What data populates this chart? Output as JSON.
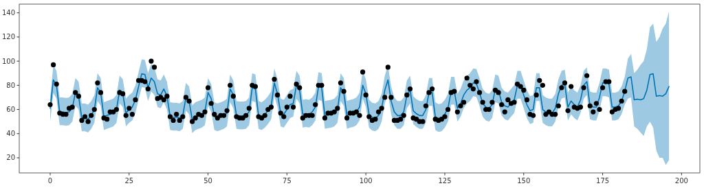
{
  "chart_data": {
    "type": "line",
    "xlim": [
      -9.8,
      205.8
    ],
    "ylim": [
      7.5,
      147.2
    ],
    "xticks": [
      0,
      25,
      50,
      75,
      100,
      125,
      150,
      175,
      200
    ],
    "yticks": [
      20,
      40,
      60,
      80,
      100,
      120,
      140
    ],
    "grid": false,
    "series": [
      {
        "color": "#0072b2",
        "x": [
          0,
          1,
          2,
          3,
          4,
          5,
          6,
          7,
          8,
          9,
          10,
          11,
          12,
          13,
          14,
          15,
          16,
          17,
          18,
          19,
          20,
          21,
          22,
          23,
          24,
          25,
          26,
          27,
          28,
          29,
          30,
          31,
          32,
          33,
          34,
          35,
          36,
          37,
          38,
          39,
          40,
          41,
          42,
          43,
          44,
          45,
          46,
          47,
          48,
          49,
          50,
          51,
          52,
          53,
          54,
          55,
          56,
          57,
          58,
          59,
          60,
          61,
          62,
          63,
          64,
          65,
          66,
          67,
          68,
          69,
          70,
          71,
          72,
          73,
          74,
          75,
          76,
          77,
          78,
          79,
          80,
          81,
          82,
          83,
          84,
          85,
          86,
          87,
          88,
          89,
          90,
          91,
          92,
          93,
          94,
          95,
          96,
          97,
          98,
          99,
          100,
          101,
          102,
          103,
          104,
          105,
          106,
          107,
          108,
          109,
          110,
          111,
          112,
          113,
          114,
          115,
          116,
          117,
          118,
          119,
          120,
          121,
          122,
          123,
          124,
          125,
          126,
          127,
          128,
          129,
          130,
          131,
          132,
          133,
          134,
          135,
          136,
          137,
          138,
          139,
          140,
          141,
          142,
          143,
          144,
          145,
          146,
          147,
          148,
          149,
          150,
          151,
          152,
          153,
          154,
          155,
          156,
          157,
          158,
          159,
          160,
          161,
          162,
          163,
          164,
          165,
          166,
          167,
          168,
          169,
          170,
          171,
          172,
          173,
          174,
          175,
          176,
          177,
          178,
          179,
          180,
          181,
          182,
          183,
          184,
          185,
          186,
          187,
          188,
          189,
          190,
          191,
          192,
          193,
          194,
          195,
          196
        ],
        "values": [
          61,
          84.5,
          80,
          58,
          58,
          57.5,
          58,
          61,
          74,
          71,
          53,
          53,
          52,
          55,
          60,
          78,
          74,
          54,
          55,
          56,
          57,
          60,
          76,
          73,
          57,
          60,
          62,
          68,
          79,
          89.5,
          89,
          78,
          86,
          83,
          73,
          72,
          77,
          71,
          54,
          53.5,
          53.5,
          53,
          55,
          70,
          67,
          51.5,
          54,
          55,
          56,
          58,
          74,
          69,
          54,
          53,
          54,
          55,
          57,
          77,
          72,
          55,
          54.5,
          54.5,
          55,
          58,
          78,
          77,
          55,
          54,
          56,
          59,
          63,
          82,
          73,
          57,
          56,
          60,
          64,
          65,
          80,
          76,
          56,
          56.5,
          56,
          58,
          62,
          79,
          78,
          55,
          55.5,
          56,
          57,
          60,
          78,
          74,
          55,
          56,
          56.5,
          58,
          62,
          80,
          73,
          56,
          53.5,
          53,
          55,
          61,
          76,
          84.5,
          67,
          58,
          55,
          55,
          58,
          72,
          76,
          59,
          56.5,
          55,
          55,
          60,
          74,
          74,
          54,
          52.5,
          53,
          56,
          61,
          75,
          75,
          61,
          65,
          72,
          76,
          78,
          82,
          81.5,
          74,
          65,
          62,
          61,
          64,
          77,
          76,
          66,
          63,
          62,
          65,
          68,
          80,
          80,
          72,
          64,
          59,
          60,
          78,
          78,
          60,
          58,
          57,
          57,
          61,
          73,
          80,
          81,
          62,
          67,
          64,
          62,
          68,
          80,
          83,
          63,
          62,
          62,
          70,
          82,
          82,
          81,
          62,
          62,
          63,
          67,
          75,
          86,
          87,
          68,
          68.5,
          68,
          69,
          76,
          89,
          89.5,
          71,
          71.5,
          71,
          73,
          79
        ],
        "lower": [
          50,
          73.5,
          69,
          47,
          47,
          46.5,
          47,
          50,
          63,
          60,
          42,
          42,
          41,
          44,
          49,
          67,
          63,
          43,
          44,
          45,
          46,
          49,
          65,
          62,
          46,
          49,
          51,
          57,
          68,
          78.5,
          78,
          67,
          75,
          72,
          62,
          61,
          66,
          60,
          43,
          42.5,
          42.5,
          42,
          44,
          59,
          56,
          40.5,
          43,
          44,
          45,
          47,
          63,
          58,
          43,
          42,
          43,
          44,
          46,
          66,
          61,
          44,
          43.5,
          43.5,
          44,
          47,
          67,
          66,
          44,
          43,
          45,
          48,
          52,
          71,
          62,
          46,
          45,
          49,
          53,
          54,
          69,
          65,
          45,
          45.5,
          45,
          47,
          51,
          68,
          67,
          44,
          44.5,
          45,
          46,
          49,
          67,
          63,
          44,
          45,
          45.5,
          47,
          51,
          69,
          62,
          45,
          42.5,
          42,
          44,
          50,
          65,
          73.5,
          56,
          47,
          44,
          44,
          47,
          61,
          65,
          48,
          45.5,
          44,
          44,
          49,
          63,
          63,
          43,
          41.5,
          42,
          45,
          50,
          64,
          64,
          50,
          54,
          61,
          65,
          67,
          71,
          70.5,
          63,
          54,
          51,
          50,
          53,
          66,
          65,
          55,
          52,
          51,
          54,
          57,
          69,
          69,
          61,
          53,
          48,
          49,
          67,
          67,
          49,
          47,
          46,
          46,
          50,
          62,
          69,
          70,
          51,
          56,
          53,
          51,
          57,
          69,
          72,
          52,
          51,
          51,
          59,
          71,
          71,
          70,
          51,
          51,
          52,
          56,
          64,
          69,
          70,
          46,
          44,
          41,
          38,
          46,
          50,
          45,
          26,
          20,
          20,
          14,
          18
        ],
        "upper": [
          70,
          96.5,
          92,
          70,
          70,
          69.5,
          70,
          73,
          86,
          83,
          65,
          65,
          64,
          67,
          72,
          90,
          86,
          66,
          67,
          68,
          69,
          72,
          88,
          85,
          69,
          72,
          74,
          80,
          91,
          101.5,
          101,
          90,
          98,
          95,
          85,
          84,
          89,
          83,
          66,
          65.5,
          65.5,
          65,
          67,
          82,
          79,
          63.5,
          66,
          67,
          68,
          70,
          86,
          81,
          66,
          65,
          66,
          67,
          69,
          89,
          84,
          67,
          66.5,
          66.5,
          67,
          70,
          90,
          89,
          67,
          66,
          68,
          71,
          75,
          94,
          85,
          69,
          68,
          72,
          76,
          77,
          92,
          88,
          68,
          68.5,
          68,
          70,
          74,
          91,
          90,
          67,
          67.5,
          68,
          69,
          72,
          90,
          86,
          67,
          68,
          68.5,
          70,
          74,
          92,
          85,
          68,
          65.5,
          65,
          67,
          73,
          88,
          96.5,
          79,
          70,
          67,
          67,
          70,
          84,
          88,
          71,
          68.5,
          67,
          67,
          72,
          86,
          86,
          66,
          64.5,
          65,
          68,
          73,
          87,
          87,
          73,
          77,
          84,
          88,
          90,
          94,
          93.5,
          86,
          77,
          74,
          73,
          76,
          89,
          88,
          78,
          75,
          74,
          77,
          80,
          92,
          92,
          84,
          76,
          71,
          72,
          90,
          90,
          72,
          70,
          69,
          69,
          73,
          85,
          92,
          93,
          74,
          79,
          76,
          74,
          80,
          92,
          95,
          75,
          74,
          74,
          82,
          94,
          94,
          93,
          74,
          74,
          75,
          79,
          87,
          102,
          106,
          90,
          93,
          97,
          100,
          110,
          128,
          131,
          116,
          120,
          127,
          131,
          141
        ]
      },
      {
        "type": "scatter",
        "color": "#000000",
        "marker": "circle",
        "x": [
          0,
          1,
          2,
          3,
          4,
          5,
          6,
          7,
          8,
          9,
          10,
          11,
          12,
          13,
          14,
          15,
          16,
          17,
          18,
          19,
          20,
          21,
          22,
          23,
          24,
          25,
          26,
          27,
          28,
          29,
          30,
          31,
          32,
          33,
          34,
          35,
          36,
          37,
          38,
          39,
          40,
          41,
          42,
          43,
          44,
          45,
          46,
          47,
          48,
          49,
          50,
          51,
          52,
          53,
          54,
          55,
          56,
          57,
          58,
          59,
          60,
          61,
          62,
          63,
          64,
          65,
          66,
          67,
          68,
          69,
          70,
          71,
          72,
          73,
          74,
          75,
          76,
          77,
          78,
          79,
          80,
          81,
          82,
          83,
          84,
          85,
          86,
          87,
          88,
          89,
          90,
          91,
          92,
          93,
          94,
          95,
          96,
          97,
          98,
          99,
          100,
          101,
          102,
          103,
          104,
          105,
          106,
          107,
          108,
          109,
          110,
          111,
          112,
          113,
          114,
          115,
          116,
          117,
          118,
          119,
          120,
          121,
          122,
          123,
          124,
          125,
          126,
          127,
          128,
          129,
          130,
          131,
          132,
          133,
          134,
          135,
          136,
          137,
          138,
          139,
          140,
          141,
          142,
          143,
          144,
          145,
          146,
          147,
          148,
          149,
          150,
          151,
          152,
          153,
          154,
          155,
          156,
          157,
          158,
          159,
          160,
          161,
          162,
          163,
          164,
          165,
          166,
          167,
          168,
          169,
          170,
          171,
          172,
          173,
          174,
          175,
          176,
          177,
          178,
          179,
          180,
          181,
          182
        ],
        "values": [
          64,
          97,
          81,
          57,
          56,
          56,
          61,
          62,
          74,
          71,
          51,
          54,
          50,
          55,
          60,
          82,
          74,
          53,
          52,
          58,
          58,
          60,
          74,
          73,
          55,
          61,
          56,
          68,
          84,
          84,
          83,
          77,
          100,
          95,
          69,
          70,
          68,
          71,
          54,
          51,
          56,
          51,
          54,
          70,
          67,
          50,
          53,
          56,
          55,
          58,
          78,
          65,
          56,
          53,
          55,
          55,
          59,
          80,
          71,
          54,
          53,
          53,
          55,
          61,
          80,
          79,
          54,
          53,
          55,
          60,
          62,
          85,
          72,
          57,
          54,
          62,
          71,
          62,
          81,
          78,
          53,
          55,
          55,
          55,
          64,
          80,
          80,
          53,
          57,
          57,
          58,
          61,
          82,
          75,
          53,
          57,
          57,
          58,
          55,
          91,
          72,
          54,
          51,
          52,
          58,
          61,
          70,
          95,
          70,
          51,
          51,
          52,
          55,
          72,
          77,
          53,
          52,
          50,
          50,
          63,
          74,
          77,
          52,
          51,
          52,
          54,
          60,
          74,
          75,
          58,
          63,
          66,
          86,
          80,
          77,
          83,
          74,
          66,
          60,
          60,
          66,
          76,
          74,
          64,
          58,
          68,
          65,
          66,
          81,
          79,
          76,
          68,
          56,
          55,
          72,
          84,
          80,
          56,
          58,
          56,
          56,
          63,
          78,
          82,
          59,
          79,
          62,
          61,
          62,
          78,
          88,
          63,
          58,
          65,
          60,
          78,
          83,
          83,
          58,
          60,
          61,
          67,
          75
        ]
      }
    ]
  }
}
